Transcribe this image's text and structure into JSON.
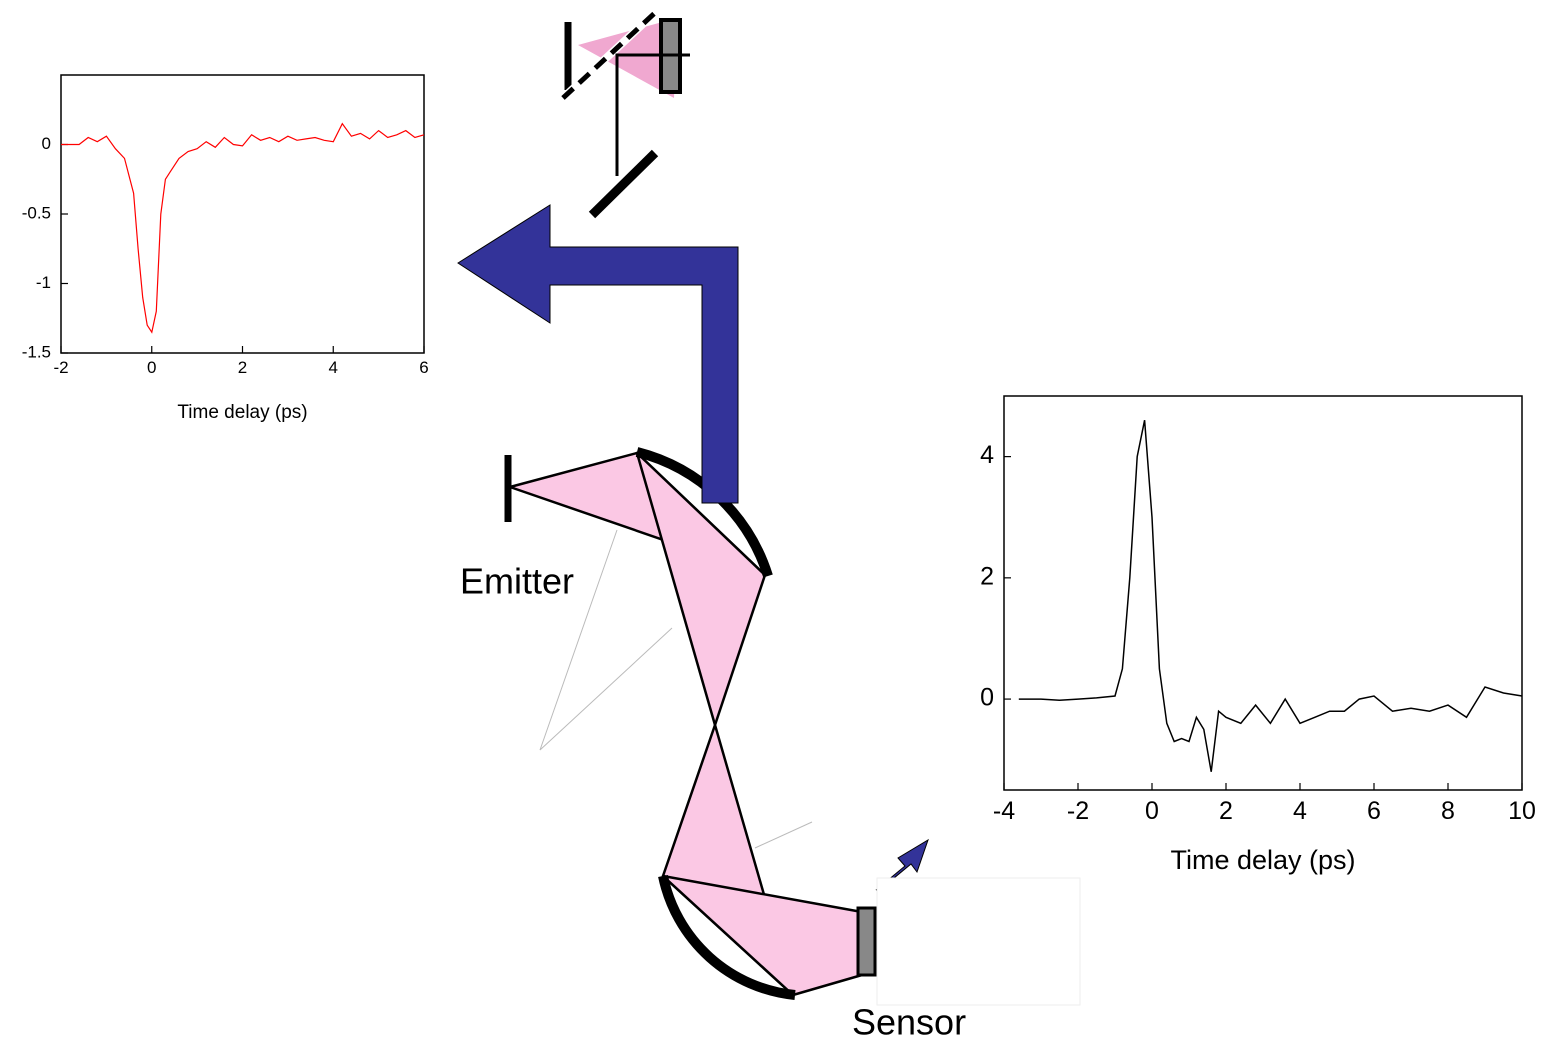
{
  "labels": {
    "emitter": "Emitter",
    "sensor": "Sensor"
  },
  "chart_data": [
    {
      "type": "line",
      "xlabel": "Time delay (ps)",
      "color": "#ff0000",
      "xlim": [
        -2,
        6
      ],
      "xticks": [
        -2,
        0,
        2,
        4,
        6
      ],
      "ylim": [
        -1.5,
        0.5
      ],
      "yticks": [
        0,
        -0.5,
        -1,
        -1.5
      ],
      "x": [
        -2,
        -1.6,
        -1.4,
        -1.2,
        -1,
        -0.8,
        -0.6,
        -0.4,
        -0.3,
        -0.2,
        -0.1,
        0,
        0.1,
        0.2,
        0.3,
        0.4,
        0.6,
        0.8,
        1,
        1.2,
        1.4,
        1.6,
        1.8,
        2,
        2.2,
        2.4,
        2.6,
        2.8,
        3,
        3.2,
        3.4,
        3.6,
        3.8,
        4,
        4.2,
        4.4,
        4.6,
        4.8,
        5,
        5.2,
        5.4,
        5.6,
        5.8,
        6
      ],
      "values": [
        0,
        0,
        0.05,
        0.02,
        0.06,
        -0.03,
        -0.1,
        -0.35,
        -0.75,
        -1.1,
        -1.3,
        -1.35,
        -1.2,
        -0.5,
        -0.25,
        -0.2,
        -0.1,
        -0.05,
        -0.03,
        0.02,
        -0.02,
        0.05,
        0,
        -0.01,
        0.07,
        0.03,
        0.05,
        0.02,
        0.06,
        0.03,
        0.04,
        0.05,
        0.03,
        0.02,
        0.15,
        0.06,
        0.08,
        0.04,
        0.1,
        0.05,
        0.07,
        0.1,
        0.05,
        0.07
      ]
    },
    {
      "type": "line",
      "xlabel": "Time delay (ps)",
      "color": "#000000",
      "xlim": [
        -4,
        10
      ],
      "xticks": [
        -4,
        -2,
        0,
        2,
        4,
        6,
        8,
        10
      ],
      "ylim": [
        -1.5,
        5
      ],
      "yticks": [
        0,
        2,
        4
      ],
      "x": [
        -3.6,
        -3,
        -2.5,
        -2,
        -1.5,
        -1,
        -0.8,
        -0.6,
        -0.4,
        -0.2,
        0,
        0.2,
        0.4,
        0.6,
        0.8,
        1,
        1.2,
        1.4,
        1.6,
        1.8,
        2,
        2.4,
        2.8,
        3.2,
        3.6,
        4,
        4.4,
        4.8,
        5.2,
        5.6,
        6,
        6.5,
        7,
        7.5,
        8,
        8.5,
        9,
        9.5,
        10
      ],
      "values": [
        0,
        0,
        -0.02,
        0,
        0.02,
        0.05,
        0.5,
        2,
        4,
        4.6,
        3,
        0.5,
        -0.4,
        -0.7,
        -0.65,
        -0.7,
        -0.3,
        -0.5,
        -1.2,
        -0.2,
        -0.3,
        -0.4,
        -0.1,
        -0.4,
        0,
        -0.4,
        -0.3,
        -0.2,
        -0.2,
        0,
        0.05,
        -0.2,
        -0.15,
        -0.2,
        -0.1,
        -0.3,
        0.2,
        0.1,
        0.05
      ]
    }
  ]
}
